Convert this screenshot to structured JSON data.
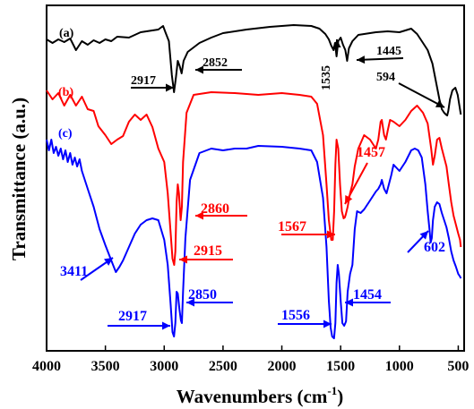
{
  "chart_data": {
    "type": "line",
    "xlabel_main": "Wavenumbers (cm",
    "xlabel_sup": "-1",
    "xlabel_close": ")",
    "ylabel": "Transmittance (a.u.)",
    "xlim": [
      4000,
      450
    ],
    "x_reversed": true,
    "x_ticks": [
      4000,
      3500,
      3000,
      2500,
      2000,
      1500,
      1000,
      500
    ],
    "x_tick_labels": [
      "4000",
      "3500",
      "3000",
      "2500",
      "2000",
      "1500",
      "1000",
      "500"
    ],
    "y_ticks_shown": false,
    "grid": false,
    "series": [
      {
        "name": "(a)",
        "color": "#000000",
        "points": [
          [
            4000,
            38
          ],
          [
            3950,
            42
          ],
          [
            3900,
            38
          ],
          [
            3850,
            41
          ],
          [
            3800,
            37
          ],
          [
            3750,
            50
          ],
          [
            3700,
            40
          ],
          [
            3650,
            44
          ],
          [
            3600,
            39
          ],
          [
            3550,
            42
          ],
          [
            3500,
            38
          ],
          [
            3450,
            40
          ],
          [
            3400,
            35
          ],
          [
            3300,
            36
          ],
          [
            3200,
            30
          ],
          [
            3100,
            28
          ],
          [
            3050,
            27
          ],
          [
            3010,
            23
          ],
          [
            2990,
            30
          ],
          [
            2960,
            40
          ],
          [
            2935,
            78
          ],
          [
            2917,
            97
          ],
          [
            2900,
            80
          ],
          [
            2885,
            62
          ],
          [
            2868,
            68
          ],
          [
            2852,
            76
          ],
          [
            2835,
            62
          ],
          [
            2800,
            52
          ],
          [
            2700,
            42
          ],
          [
            2600,
            36
          ],
          [
            2500,
            31
          ],
          [
            2300,
            27
          ],
          [
            2100,
            24
          ],
          [
            1900,
            22
          ],
          [
            1750,
            23
          ],
          [
            1680,
            26
          ],
          [
            1630,
            32
          ],
          [
            1600,
            38
          ],
          [
            1580,
            45
          ],
          [
            1560,
            50
          ],
          [
            1548,
            42
          ],
          [
            1535,
            57
          ],
          [
            1520,
            40
          ],
          [
            1500,
            36
          ],
          [
            1480,
            44
          ],
          [
            1460,
            50
          ],
          [
            1445,
            62
          ],
          [
            1430,
            48
          ],
          [
            1400,
            40
          ],
          [
            1350,
            33
          ],
          [
            1300,
            32
          ],
          [
            1200,
            30
          ],
          [
            1100,
            29
          ],
          [
            1000,
            30
          ],
          [
            950,
            28
          ],
          [
            900,
            26
          ],
          [
            850,
            32
          ],
          [
            800,
            42
          ],
          [
            760,
            50
          ],
          [
            720,
            65
          ],
          [
            690,
            85
          ],
          [
            660,
            105
          ],
          [
            640,
            116
          ],
          [
            620,
            120
          ],
          [
            605,
            122
          ],
          [
            594,
            123
          ],
          [
            585,
            118
          ],
          [
            570,
            105
          ],
          [
            550,
            95
          ],
          [
            525,
            92
          ],
          [
            505,
            100
          ],
          [
            490,
            112
          ],
          [
            478,
            122
          ]
        ]
      },
      {
        "name": "(b)",
        "color": "#ff0000",
        "points": [
          [
            4000,
            95
          ],
          [
            3950,
            105
          ],
          [
            3900,
            98
          ],
          [
            3850,
            112
          ],
          [
            3800,
            100
          ],
          [
            3750,
            112
          ],
          [
            3700,
            102
          ],
          [
            3650,
            116
          ],
          [
            3600,
            118
          ],
          [
            3560,
            135
          ],
          [
            3500,
            145
          ],
          [
            3450,
            155
          ],
          [
            3400,
            150
          ],
          [
            3350,
            146
          ],
          [
            3300,
            130
          ],
          [
            3250,
            122
          ],
          [
            3200,
            128
          ],
          [
            3150,
            122
          ],
          [
            3100,
            136
          ],
          [
            3050,
            160
          ],
          [
            3000,
            175
          ],
          [
            2970,
            210
          ],
          [
            2945,
            255
          ],
          [
            2930,
            283
          ],
          [
            2915,
            290
          ],
          [
            2905,
            275
          ],
          [
            2895,
            220
          ],
          [
            2885,
            200
          ],
          [
            2875,
            210
          ],
          [
            2860,
            240
          ],
          [
            2850,
            225
          ],
          [
            2840,
            175
          ],
          [
            2810,
            120
          ],
          [
            2750,
            100
          ],
          [
            2600,
            97
          ],
          [
            2400,
            98
          ],
          [
            2200,
            100
          ],
          [
            2000,
            98
          ],
          [
            1850,
            100
          ],
          [
            1750,
            102
          ],
          [
            1700,
            110
          ],
          [
            1650,
            145
          ],
          [
            1620,
            200
          ],
          [
            1600,
            240
          ],
          [
            1580,
            262
          ],
          [
            1567,
            262
          ],
          [
            1555,
            230
          ],
          [
            1545,
            178
          ],
          [
            1535,
            150
          ],
          [
            1520,
            160
          ],
          [
            1505,
            200
          ],
          [
            1490,
            230
          ],
          [
            1475,
            238
          ],
          [
            1465,
            237
          ],
          [
            1457,
            234
          ],
          [
            1440,
            225
          ],
          [
            1420,
            210
          ],
          [
            1400,
            200
          ],
          [
            1380,
            180
          ],
          [
            1350,
            160
          ],
          [
            1300,
            145
          ],
          [
            1250,
            150
          ],
          [
            1200,
            160
          ],
          [
            1180,
            150
          ],
          [
            1160,
            130
          ],
          [
            1150,
            128
          ],
          [
            1130,
            145
          ],
          [
            1115,
            150
          ],
          [
            1100,
            140
          ],
          [
            1080,
            128
          ],
          [
            1050,
            130
          ],
          [
            1000,
            135
          ],
          [
            950,
            128
          ],
          [
            900,
            118
          ],
          [
            850,
            112
          ],
          [
            800,
            120
          ],
          [
            760,
            132
          ],
          [
            730,
            160
          ],
          [
            715,
            178
          ],
          [
            700,
            168
          ],
          [
            680,
            150
          ],
          [
            660,
            148
          ],
          [
            640,
            160
          ],
          [
            620,
            170
          ],
          [
            600,
            180
          ],
          [
            580,
            200
          ],
          [
            560,
            220
          ],
          [
            540,
            235
          ],
          [
            520,
            245
          ],
          [
            500,
            255
          ],
          [
            485,
            262
          ],
          [
            478,
            270
          ]
        ]
      },
      {
        "name": "(c)",
        "color": "#0000ff",
        "points": [
          [
            4000,
            150
          ],
          [
            3980,
            162
          ],
          [
            3960,
            150
          ],
          [
            3940,
            165
          ],
          [
            3920,
            158
          ],
          [
            3900,
            168
          ],
          [
            3880,
            160
          ],
          [
            3860,
            172
          ],
          [
            3840,
            162
          ],
          [
            3820,
            175
          ],
          [
            3800,
            165
          ],
          [
            3780,
            178
          ],
          [
            3760,
            170
          ],
          [
            3740,
            180
          ],
          [
            3720,
            172
          ],
          [
            3700,
            185
          ],
          [
            3650,
            205
          ],
          [
            3600,
            225
          ],
          [
            3550,
            250
          ],
          [
            3500,
            268
          ],
          [
            3450,
            285
          ],
          [
            3411,
            298
          ],
          [
            3380,
            292
          ],
          [
            3350,
            285
          ],
          [
            3300,
            270
          ],
          [
            3250,
            255
          ],
          [
            3200,
            245
          ],
          [
            3150,
            240
          ],
          [
            3100,
            238
          ],
          [
            3050,
            240
          ],
          [
            3000,
            262
          ],
          [
            2970,
            290
          ],
          [
            2945,
            335
          ],
          [
            2930,
            365
          ],
          [
            2917,
            370
          ],
          [
            2905,
            355
          ],
          [
            2895,
            320
          ],
          [
            2885,
            322
          ],
          [
            2870,
            340
          ],
          [
            2858,
            352
          ],
          [
            2850,
            355
          ],
          [
            2840,
            320
          ],
          [
            2820,
            260
          ],
          [
            2780,
            195
          ],
          [
            2700,
            165
          ],
          [
            2600,
            160
          ],
          [
            2500,
            162
          ],
          [
            2400,
            160
          ],
          [
            2300,
            160
          ],
          [
            2200,
            157
          ],
          [
            2000,
            158
          ],
          [
            1850,
            160
          ],
          [
            1750,
            162
          ],
          [
            1700,
            175
          ],
          [
            1650,
            215
          ],
          [
            1620,
            270
          ],
          [
            1600,
            330
          ],
          [
            1585,
            360
          ],
          [
            1572,
            370
          ],
          [
            1556,
            372
          ],
          [
            1545,
            355
          ],
          [
            1535,
            310
          ],
          [
            1525,
            290
          ],
          [
            1515,
            300
          ],
          [
            1500,
            330
          ],
          [
            1485,
            355
          ],
          [
            1470,
            358
          ],
          [
            1460,
            355
          ],
          [
            1454,
            353
          ],
          [
            1440,
            320
          ],
          [
            1420,
            300
          ],
          [
            1400,
            290
          ],
          [
            1380,
            250
          ],
          [
            1360,
            230
          ],
          [
            1330,
            232
          ],
          [
            1300,
            228
          ],
          [
            1250,
            218
          ],
          [
            1200,
            208
          ],
          [
            1180,
            205
          ],
          [
            1160,
            200
          ],
          [
            1150,
            195
          ],
          [
            1130,
            205
          ],
          [
            1110,
            210
          ],
          [
            1090,
            200
          ],
          [
            1070,
            190
          ],
          [
            1050,
            178
          ],
          [
            1000,
            185
          ],
          [
            950,
            175
          ],
          [
            900,
            162
          ],
          [
            870,
            160
          ],
          [
            840,
            162
          ],
          [
            810,
            170
          ],
          [
            780,
            200
          ],
          [
            760,
            230
          ],
          [
            745,
            250
          ],
          [
            735,
            265
          ],
          [
            725,
            260
          ],
          [
            715,
            240
          ],
          [
            700,
            225
          ],
          [
            680,
            220
          ],
          [
            660,
            222
          ],
          [
            640,
            232
          ],
          [
            620,
            240
          ],
          [
            600,
            248
          ],
          [
            580,
            260
          ],
          [
            560,
            275
          ],
          [
            540,
            285
          ],
          [
            520,
            292
          ],
          [
            500,
            300
          ],
          [
            485,
            303
          ],
          [
            478,
            305
          ]
        ]
      }
    ],
    "annotations": [
      {
        "text": "2917",
        "color": "#000000"
      },
      {
        "text": "2852",
        "color": "#000000"
      },
      {
        "text": "1535",
        "color": "#000000"
      },
      {
        "text": "1445",
        "color": "#000000"
      },
      {
        "text": "594",
        "color": "#000000"
      },
      {
        "text": "2860",
        "color": "#ff0000"
      },
      {
        "text": "2915",
        "color": "#ff0000"
      },
      {
        "text": "1567",
        "color": "#ff0000"
      },
      {
        "text": "1457",
        "color": "#ff0000"
      },
      {
        "text": "3411",
        "color": "#0000ff"
      },
      {
        "text": "2917",
        "color": "#0000ff"
      },
      {
        "text": "2850",
        "color": "#0000ff"
      },
      {
        "text": "1556",
        "color": "#0000ff"
      },
      {
        "text": "1454",
        "color": "#0000ff"
      },
      {
        "text": "602",
        "color": "#0000ff"
      }
    ]
  }
}
